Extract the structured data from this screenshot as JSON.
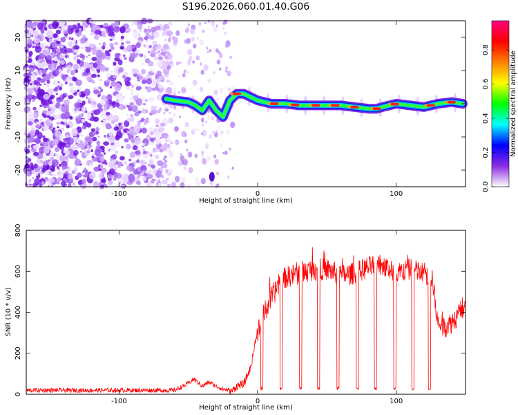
{
  "chart_data": [
    {
      "type": "heatmap",
      "title": "S196.2026.060.01.40.G06",
      "xlabel": "Height of straight line (km)",
      "ylabel": "Frequency (Hz)",
      "xlim": [
        -167,
        150
      ],
      "ylim": [
        -25,
        25
      ],
      "x_ticks": [
        -100,
        0,
        100
      ],
      "y_ticks": [
        -20,
        -10,
        0,
        10,
        20
      ],
      "colorbar": {
        "label": "Normalized spectral amplitude",
        "range": [
          0,
          0.97
        ],
        "ticks": [
          0,
          0.2,
          0.4,
          0.6,
          0.8
        ],
        "colormap": [
          "#ffffff",
          "#8a2be2",
          "#0000ff",
          "#00ffff",
          "#00ff00",
          "#ffff00",
          "#ff8000",
          "#ff0000",
          "#ff0080"
        ]
      },
      "ridge": {
        "x": [
          -66,
          -60,
          -50,
          -45,
          -40,
          -35,
          -30,
          -25,
          -20,
          -15,
          -10,
          -5,
          0,
          10,
          20,
          30,
          40,
          50,
          60,
          70,
          80,
          86,
          90,
          100,
          110,
          120,
          130,
          140,
          148
        ],
        "y": [
          1.5,
          1.0,
          0.5,
          -0.5,
          -2,
          1,
          -2,
          -4,
          1,
          3,
          3,
          2,
          1,
          0,
          0,
          -0.5,
          -0.5,
          -0.5,
          -0.5,
          -1,
          -1.5,
          -1.5,
          -1,
          0,
          -0.5,
          -1,
          0,
          0.5,
          0
        ]
      },
      "grid": false,
      "legend": "none"
    },
    {
      "type": "line",
      "xlabel": "Height of straight line (km)",
      "ylabel": "SNR (10 * v/v)",
      "xlim": [
        -167,
        150
      ],
      "ylim": [
        0,
        800
      ],
      "x_ticks": [
        -100,
        0,
        100
      ],
      "y_ticks": [
        0,
        200,
        400,
        600,
        800
      ],
      "line_color": "#ff0000",
      "envelope": {
        "x": [
          -167,
          -140,
          -110,
          -80,
          -60,
          -52,
          -46,
          -40,
          -35,
          -30,
          -25,
          -20,
          -15,
          -10,
          -5,
          0,
          5,
          10,
          15,
          20,
          30,
          40,
          50,
          60,
          70,
          80,
          90,
          100,
          110,
          120,
          126,
          130,
          135,
          140,
          145,
          150
        ],
        "y": [
          15,
          15,
          15,
          15,
          15,
          40,
          70,
          35,
          55,
          35,
          20,
          15,
          50,
          60,
          140,
          330,
          430,
          500,
          560,
          600,
          620,
          640,
          640,
          610,
          620,
          650,
          660,
          620,
          640,
          620,
          600,
          370,
          360,
          380,
          420,
          470
        ]
      },
      "dropouts_x": [
        3,
        17,
        31,
        44,
        58,
        72,
        85,
        99,
        112,
        124
      ],
      "grid": false,
      "legend": "none"
    }
  ]
}
